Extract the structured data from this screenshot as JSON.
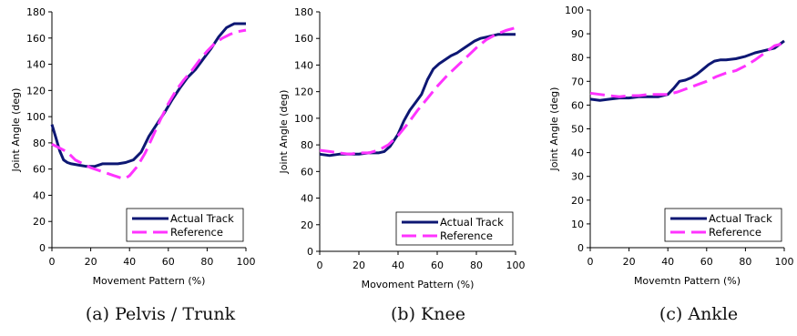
{
  "chart_data": [
    {
      "type": "line",
      "caption": "(a) Pelvis / Trunk",
      "xlabel": "Movement Pattern (%)",
      "ylabel": "Joint Angle (deg)",
      "xlim": [
        0,
        100
      ],
      "ylim": [
        0,
        180
      ],
      "xticks": [
        "0",
        "20",
        "40",
        "60",
        "80",
        "100"
      ],
      "yticks": [
        "0",
        "20",
        "40",
        "60",
        "80",
        "100",
        "120",
        "140",
        "160",
        "180"
      ],
      "legend_position": "bottom-right",
      "series": [
        {
          "name": "Actual Track",
          "color": "#0d1773",
          "style": "solid",
          "x": [
            0,
            2,
            4,
            6,
            8,
            10,
            14,
            18,
            22,
            26,
            30,
            34,
            38,
            42,
            46,
            50,
            54,
            58,
            62,
            66,
            70,
            74,
            78,
            82,
            86,
            90,
            94,
            98,
            100
          ],
          "y": [
            94,
            84,
            74,
            67,
            65,
            64,
            63,
            62,
            62,
            64,
            64,
            64,
            65,
            67,
            73,
            85,
            94,
            103,
            113,
            122,
            130,
            136,
            144,
            152,
            161,
            168,
            171,
            171,
            171
          ]
        },
        {
          "name": "Reference",
          "color": "#ff33ff",
          "style": "dashed",
          "x": [
            0,
            4,
            8,
            12,
            16,
            20,
            24,
            28,
            32,
            36,
            38,
            40,
            44,
            48,
            52,
            56,
            60,
            64,
            68,
            72,
            76,
            80,
            84,
            88,
            92,
            96,
            100
          ],
          "y": [
            79,
            76,
            73,
            67,
            64,
            61,
            59,
            57,
            55,
            53,
            53,
            55,
            62,
            72,
            85,
            98,
            110,
            120,
            128,
            135,
            143,
            150,
            156,
            160,
            163,
            165,
            166
          ]
        }
      ]
    },
    {
      "type": "line",
      "caption": "(b) Knee",
      "xlabel": "Movoment Pattern (%)",
      "ylabel": "Joint Angle (deg)",
      "xlim": [
        0,
        100
      ],
      "ylim": [
        0,
        180
      ],
      "xticks": [
        "0",
        "20",
        "40",
        "60",
        "80",
        "100"
      ],
      "yticks": [
        "0",
        "20",
        "40",
        "60",
        "80",
        "100",
        "120",
        "140",
        "160",
        "180"
      ],
      "legend_position": "bottom-right",
      "series": [
        {
          "name": "Actual Track",
          "color": "#0d1773",
          "style": "solid",
          "x": [
            0,
            5,
            10,
            15,
            20,
            25,
            30,
            33,
            36,
            40,
            43,
            46,
            49,
            52,
            55,
            58,
            61,
            64,
            67,
            70,
            73,
            76,
            79,
            82,
            85,
            88,
            91,
            95,
            100
          ],
          "y": [
            73,
            72,
            73,
            73,
            73,
            74,
            74,
            75,
            79,
            88,
            98,
            106,
            112,
            118,
            129,
            137,
            141,
            144,
            147,
            149,
            152,
            155,
            158,
            160,
            161,
            162,
            163,
            163,
            163
          ]
        },
        {
          "name": "Reference",
          "color": "#ff33ff",
          "style": "dashed",
          "x": [
            0,
            5,
            10,
            15,
            20,
            25,
            30,
            35,
            40,
            45,
            50,
            55,
            60,
            65,
            70,
            75,
            80,
            85,
            90,
            95,
            100
          ],
          "y": [
            76,
            75,
            74,
            73,
            74,
            74,
            76,
            80,
            87,
            96,
            106,
            115,
            124,
            132,
            139,
            146,
            153,
            159,
            163,
            166,
            168
          ]
        }
      ]
    },
    {
      "type": "line",
      "caption": "(c) Ankle",
      "xlabel": "Movemtn Pattern (%)",
      "ylabel": "Joint Angle (deg)",
      "xlim": [
        0,
        100
      ],
      "ylim": [
        0,
        100
      ],
      "xticks": [
        "0",
        "20",
        "40",
        "60",
        "80",
        "100"
      ],
      "yticks": [
        "0",
        "10",
        "20",
        "30",
        "40",
        "50",
        "60",
        "70",
        "80",
        "90",
        "100"
      ],
      "legend_position": "bottom-right",
      "series": [
        {
          "name": "Actual Track",
          "color": "#0d1773",
          "style": "solid",
          "x": [
            0,
            5,
            10,
            15,
            20,
            25,
            30,
            35,
            40,
            43,
            46,
            49,
            52,
            55,
            58,
            61,
            64,
            67,
            70,
            75,
            80,
            85,
            90,
            95,
            100
          ],
          "y": [
            62.5,
            62,
            62.5,
            63,
            63,
            63.5,
            63.5,
            63.5,
            64.5,
            67,
            70,
            70.5,
            71.5,
            73,
            75,
            77,
            78.5,
            79,
            79,
            79.5,
            80.5,
            82,
            83,
            84,
            87
          ]
        },
        {
          "name": "Reference",
          "color": "#ff33ff",
          "style": "dashed",
          "x": [
            0,
            5,
            10,
            15,
            20,
            25,
            30,
            35,
            40,
            45,
            50,
            55,
            60,
            65,
            70,
            75,
            80,
            85,
            90,
            95,
            100
          ],
          "y": [
            65,
            64.5,
            64,
            63.5,
            64,
            64,
            64.5,
            64.5,
            64.5,
            65.5,
            67,
            68.5,
            70,
            72,
            73.5,
            74.5,
            76.5,
            79,
            82,
            85,
            86
          ]
        }
      ]
    }
  ]
}
